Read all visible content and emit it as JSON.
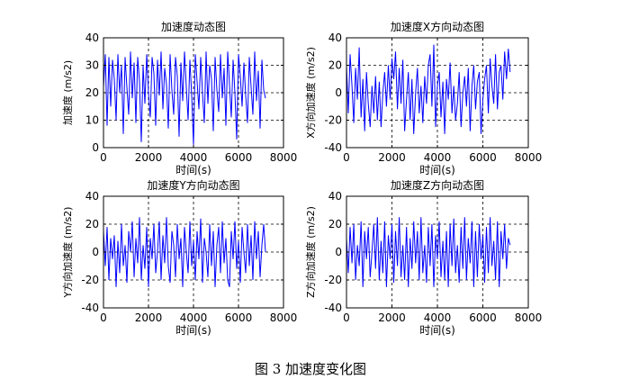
{
  "caption": "图 3  加速度变化图",
  "chart_data": [
    {
      "type": "line",
      "title": "加速度动态图",
      "xlabel": "时间(s)",
      "ylabel": "加速度 (m/s2)",
      "xlim": [
        0,
        8000
      ],
      "ylim": [
        0,
        40
      ],
      "xticks": [
        "0",
        "2000",
        "4000",
        "6000",
        "8000"
      ],
      "yticks": [
        "0",
        "10",
        "20",
        "30",
        "40"
      ],
      "grid": true,
      "series": [
        {
          "color": "#0000ff",
          "x": [
            0,
            80,
            160,
            240,
            320,
            400,
            480,
            560,
            640,
            720,
            800,
            880,
            960,
            1040,
            1120,
            1200,
            1280,
            1360,
            1440,
            1520,
            1600,
            1680,
            1760,
            1840,
            1920,
            2000,
            2080,
            2160,
            2240,
            2320,
            2400,
            2480,
            2560,
            2640,
            2720,
            2800,
            2880,
            2960,
            3040,
            3120,
            3200,
            3280,
            3360,
            3440,
            3520,
            3600,
            3680,
            3760,
            3840,
            3920,
            4000,
            4080,
            4160,
            4240,
            4320,
            4400,
            4480,
            4560,
            4640,
            4720,
            4800,
            4880,
            4960,
            5040,
            5120,
            5200,
            5280,
            5360,
            5440,
            5520,
            5600,
            5680,
            5760,
            5840,
            5920,
            6000,
            6080,
            6160,
            6240,
            6320,
            6400,
            6480,
            6560,
            6640,
            6720,
            6800,
            6880,
            6960,
            7040,
            7120,
            7200
          ],
          "y": [
            22,
            34,
            8,
            33,
            15,
            32,
            25,
            10,
            34,
            20,
            30,
            5,
            33,
            22,
            12,
            35,
            18,
            31,
            9,
            33,
            24,
            2,
            30,
            16,
            34,
            20,
            11,
            33,
            27,
            8,
            32,
            19,
            35,
            14,
            29,
            23,
            7,
            34,
            21,
            12,
            33,
            26,
            4,
            31,
            17,
            35,
            22,
            10,
            32,
            19,
            1,
            34,
            24,
            14,
            33,
            20,
            9,
            35,
            16,
            30,
            25,
            6,
            33,
            21,
            13,
            34,
            18,
            29,
            8,
            35,
            23,
            11,
            32,
            20,
            3,
            34,
            26,
            15,
            31,
            19,
            9,
            33,
            22,
            12,
            35,
            17,
            28,
            7,
            32,
            21,
            18
          ]
        }
      ]
    },
    {
      "type": "line",
      "title": "加速度X方向动态图",
      "xlabel": "时间(s)",
      "ylabel": "X方向加速度 (m/s2)",
      "xlim": [
        0,
        8000
      ],
      "ylim": [
        -40,
        40
      ],
      "xticks": [
        "0",
        "2000",
        "4000",
        "6000",
        "8000"
      ],
      "yticks": [
        "-40",
        "-20",
        "0",
        "20",
        "40"
      ],
      "grid": true,
      "series": [
        {
          "color": "#0000ff",
          "x": [
            0,
            80,
            160,
            240,
            320,
            400,
            480,
            560,
            640,
            720,
            800,
            880,
            960,
            1040,
            1120,
            1200,
            1280,
            1360,
            1440,
            1520,
            1600,
            1680,
            1760,
            1840,
            1920,
            2000,
            2080,
            2160,
            2240,
            2320,
            2400,
            2480,
            2560,
            2640,
            2720,
            2800,
            2880,
            2960,
            3040,
            3120,
            3200,
            3280,
            3360,
            3440,
            3520,
            3600,
            3680,
            3760,
            3840,
            3920,
            4000,
            4080,
            4160,
            4240,
            4320,
            4400,
            4480,
            4560,
            4640,
            4720,
            4800,
            4880,
            4960,
            5040,
            5120,
            5200,
            5280,
            5360,
            5440,
            5520,
            5600,
            5680,
            5760,
            5840,
            5920,
            6000,
            6080,
            6160,
            6240,
            6320,
            6400,
            6480,
            6560,
            6640,
            6720,
            6800,
            6880,
            6960,
            7040,
            7120,
            7200
          ],
          "y": [
            20,
            -15,
            28,
            5,
            -22,
            18,
            -5,
            33,
            -18,
            10,
            -28,
            15,
            -8,
            -25,
            5,
            -15,
            12,
            -20,
            8,
            -25,
            0,
            15,
            -10,
            20,
            -5,
            25,
            10,
            30,
            -12,
            18,
            -8,
            24,
            -28,
            -5,
            15,
            -20,
            10,
            -30,
            0,
            18,
            -15,
            5,
            -22,
            12,
            -8,
            20,
            28,
            -10,
            35,
            -25,
            5,
            15,
            -18,
            8,
            -30,
            10,
            -5,
            22,
            -15,
            5,
            -20,
            -8,
            15,
            -25,
            0,
            12,
            -10,
            18,
            -28,
            5,
            20,
            -12,
            8,
            15,
            -30,
            -5,
            10,
            20,
            -15,
            25,
            5,
            -8,
            28,
            -12,
            15,
            20,
            -5,
            30,
            10,
            32,
            15
          ]
        }
      ]
    },
    {
      "type": "line",
      "title": "加速度Y方向动态图",
      "xlabel": "时间(s)",
      "ylabel": "Y方向加速度 (m/s2)",
      "xlim": [
        0,
        8000
      ],
      "ylim": [
        -40,
        40
      ],
      "xticks": [
        "0",
        "2000",
        "4000",
        "6000",
        "8000"
      ],
      "yticks": [
        "-40",
        "-20",
        "0",
        "20",
        "40"
      ],
      "grid": true,
      "series": [
        {
          "color": "#0000ff",
          "x": [
            0,
            80,
            160,
            240,
            320,
            400,
            480,
            560,
            640,
            720,
            800,
            880,
            960,
            1040,
            1120,
            1200,
            1280,
            1360,
            1440,
            1520,
            1600,
            1680,
            1760,
            1840,
            1920,
            2000,
            2080,
            2160,
            2240,
            2320,
            2400,
            2480,
            2560,
            2640,
            2720,
            2800,
            2880,
            2960,
            3040,
            3120,
            3200,
            3280,
            3360,
            3440,
            3520,
            3600,
            3680,
            3760,
            3840,
            3920,
            4000,
            4080,
            4160,
            4240,
            4320,
            4400,
            4480,
            4560,
            4640,
            4720,
            4800,
            4880,
            4960,
            5040,
            5120,
            5200,
            5280,
            5360,
            5440,
            5520,
            5600,
            5680,
            5760,
            5840,
            5920,
            6000,
            6080,
            6160,
            6240,
            6320,
            6400,
            6480,
            6560,
            6640,
            6720,
            6800,
            6880,
            6960,
            7040,
            7120,
            7200
          ],
          "y": [
            15,
            -10,
            18,
            -20,
            10,
            -5,
            12,
            -25,
            8,
            -15,
            20,
            -10,
            5,
            -22,
            15,
            0,
            22,
            -18,
            10,
            -8,
            25,
            -20,
            5,
            -12,
            18,
            -25,
            10,
            -5,
            20,
            -15,
            0,
            22,
            -20,
            12,
            -8,
            25,
            -10,
            -22,
            15,
            5,
            -18,
            20,
            -5,
            10,
            -25,
            18,
            0,
            -15,
            22,
            -10,
            8,
            -20,
            15,
            -5,
            24,
            -22,
            10,
            0,
            -18,
            20,
            -10,
            15,
            -25,
            5,
            18,
            -15,
            22,
            -8,
            10,
            -20,
            -25,
            15,
            -5,
            22,
            -12,
            8,
            -22,
            18,
            0,
            -15,
            20,
            -10,
            12,
            -20,
            22,
            -5,
            15,
            -18,
            5,
            20,
            0
          ]
        }
      ]
    },
    {
      "type": "line",
      "title": "加速度Z方向动态图",
      "xlabel": "时间(s)",
      "ylabel": "Z方向加速度 (m/s2)",
      "xlim": [
        0,
        8000
      ],
      "ylim": [
        -40,
        40
      ],
      "xticks": [
        "0",
        "2000",
        "4000",
        "6000",
        "8000"
      ],
      "yticks": [
        "-40",
        "-20",
        "0",
        "20",
        "40"
      ],
      "grid": true,
      "series": [
        {
          "color": "#0000ff",
          "x": [
            0,
            80,
            160,
            240,
            320,
            400,
            480,
            560,
            640,
            720,
            800,
            880,
            960,
            1040,
            1120,
            1200,
            1280,
            1360,
            1440,
            1520,
            1600,
            1680,
            1760,
            1840,
            1920,
            2000,
            2080,
            2160,
            2240,
            2320,
            2400,
            2480,
            2560,
            2640,
            2720,
            2800,
            2880,
            2960,
            3040,
            3120,
            3200,
            3280,
            3360,
            3440,
            3520,
            3600,
            3680,
            3760,
            3840,
            3920,
            4000,
            4080,
            4160,
            4240,
            4320,
            4400,
            4480,
            4560,
            4640,
            4720,
            4800,
            4880,
            4960,
            5040,
            5120,
            5200,
            5280,
            5360,
            5440,
            5520,
            5600,
            5680,
            5760,
            5840,
            5920,
            6000,
            6080,
            6160,
            6240,
            6320,
            6400,
            6480,
            6560,
            6640,
            6720,
            6800,
            6880,
            6960,
            7040,
            7120,
            7200
          ],
          "y": [
            10,
            -15,
            18,
            -8,
            20,
            -20,
            5,
            -10,
            22,
            -25,
            15,
            -5,
            18,
            -18,
            0,
            20,
            -12,
            25,
            -20,
            8,
            -15,
            22,
            -25,
            12,
            -5,
            20,
            -22,
            15,
            -10,
            25,
            -18,
            5,
            -20,
            18,
            -25,
            10,
            -12,
            22,
            -8,
            15,
            -20,
            25,
            -15,
            5,
            -22,
            18,
            -10,
            20,
            -25,
            12,
            -5,
            22,
            -18,
            8,
            -20,
            15,
            -25,
            20,
            -10,
            24,
            -15,
            5,
            -22,
            18,
            -12,
            25,
            -20,
            10,
            -8,
            22,
            -25,
            15,
            -18,
            20,
            -5,
            12,
            -22,
            18,
            -15,
            25,
            -10,
            8,
            -20,
            22,
            -25,
            15,
            -5,
            20,
            -12,
            10,
            5
          ]
        }
      ]
    }
  ]
}
